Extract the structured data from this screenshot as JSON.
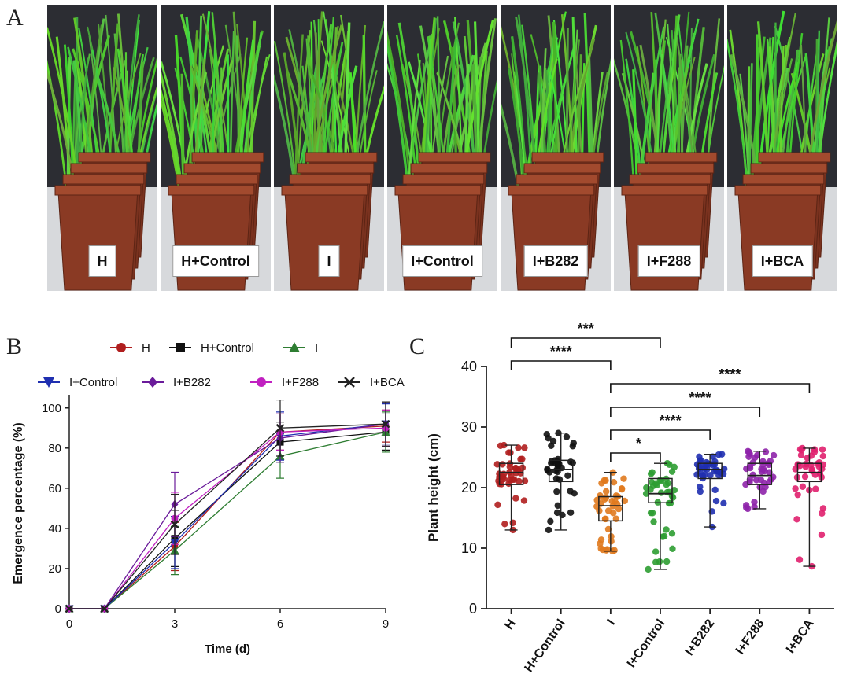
{
  "panels": {
    "a": "A",
    "b": "B",
    "c": "C"
  },
  "photo_labels": [
    "H",
    "H+Control",
    "I",
    "I+Control",
    "I+B282",
    "I+F288",
    "I+BCA"
  ],
  "chart_data": [
    {
      "type": "line",
      "panel": "B",
      "xlabel": "Time (d)",
      "ylabel": "Emergence percentage (%)",
      "xlim": [
        0,
        9
      ],
      "ylim": [
        0,
        105
      ],
      "xticks": [
        0,
        3,
        6,
        9
      ],
      "yticks": [
        0,
        20,
        40,
        60,
        80,
        100
      ],
      "grid": false,
      "legend_position": "top",
      "x": [
        0,
        1,
        3,
        6,
        9
      ],
      "series": [
        {
          "name": "H",
          "color": "#b01e1e",
          "marker": "circle",
          "values": [
            0,
            0,
            31,
            88,
            91
          ],
          "errors": [
            0,
            0,
            12,
            9,
            8
          ]
        },
        {
          "name": "H+Control",
          "color": "#111111",
          "marker": "square",
          "values": [
            0,
            0,
            35,
            83,
            88
          ],
          "errors": [
            0,
            0,
            14,
            10,
            9
          ]
        },
        {
          "name": "I",
          "color": "#2e7d32",
          "marker": "triangle-up",
          "values": [
            0,
            0,
            29,
            76,
            88
          ],
          "errors": [
            0,
            0,
            12,
            11,
            10
          ]
        },
        {
          "name": "I+Control",
          "color": "#1f2fb0",
          "marker": "triangle-down",
          "values": [
            0,
            0,
            33,
            86,
            92
          ],
          "errors": [
            0,
            0,
            13,
            12,
            10
          ]
        },
        {
          "name": "I+B282",
          "color": "#6a1b9a",
          "marker": "diamond",
          "values": [
            0,
            0,
            52,
            85,
            92
          ],
          "errors": [
            0,
            0,
            16,
            12,
            11
          ]
        },
        {
          "name": "I+F288",
          "color": "#c020c0",
          "marker": "circle",
          "values": [
            0,
            0,
            45,
            88,
            90
          ],
          "errors": [
            0,
            0,
            13,
            9,
            9
          ]
        },
        {
          "name": "I+BCA",
          "color": "#222222",
          "marker": "x",
          "values": [
            0,
            0,
            42,
            90,
            92
          ],
          "errors": [
            0,
            0,
            15,
            14,
            11
          ]
        }
      ]
    },
    {
      "type": "box",
      "panel": "C",
      "ylabel": "Plant height (cm)",
      "ylim": [
        0,
        40
      ],
      "yticks": [
        0,
        10,
        20,
        30,
        40
      ],
      "categories": [
        "H",
        "H+Control",
        "I",
        "I+Control",
        "I+B282",
        "I+F288",
        "I+BCA"
      ],
      "colors": [
        "#b01e1e",
        "#111111",
        "#e07a1e",
        "#2e9d32",
        "#1f2fb0",
        "#8e24aa",
        "#e0206e"
      ],
      "boxes": [
        {
          "min": 13,
          "q1": 20.5,
          "median": 22.5,
          "q3": 24,
          "max": 27
        },
        {
          "min": 13,
          "q1": 21,
          "median": 23,
          "q3": 24.5,
          "max": 29
        },
        {
          "min": 9.5,
          "q1": 14.5,
          "median": 17,
          "q3": 18.5,
          "max": 22.5
        },
        {
          "min": 6.5,
          "q1": 17.5,
          "median": 19,
          "q3": 21.5,
          "max": 24
        },
        {
          "min": 13.5,
          "q1": 21.5,
          "median": 23,
          "q3": 24,
          "max": 25.5
        },
        {
          "min": 16.5,
          "q1": 20.5,
          "median": 22,
          "q3": 24,
          "max": 26
        },
        {
          "min": 7,
          "q1": 21,
          "median": 22.5,
          "q3": 24,
          "max": 26.5
        }
      ],
      "significance": [
        {
          "from": 0,
          "to": 3,
          "label": "***"
        },
        {
          "from": 0,
          "to": 2,
          "label": "****"
        },
        {
          "from": 2,
          "to": 6,
          "label": "****"
        },
        {
          "from": 2,
          "to": 5,
          "label": "****"
        },
        {
          "from": 2,
          "to": 4,
          "label": "****"
        },
        {
          "from": 2,
          "to": 3,
          "label": "*"
        }
      ]
    }
  ]
}
